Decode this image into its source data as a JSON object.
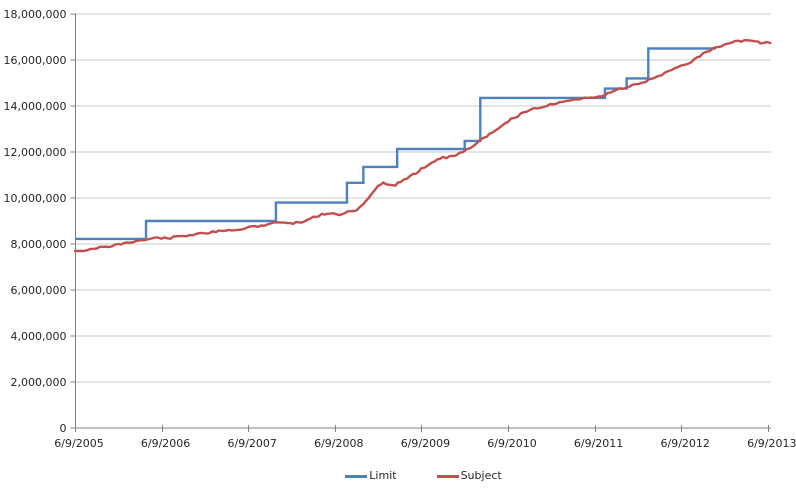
{
  "chart_data": {
    "type": "line",
    "title": "",
    "xlabel": "",
    "ylabel": "",
    "grid": true,
    "legend_position": "bottom",
    "x_axis": {
      "tick_labels": [
        "6/9/2005",
        "6/9/2006",
        "6/9/2007",
        "6/9/2008",
        "6/9/2009",
        "6/9/2010",
        "6/9/2011",
        "6/9/2012",
        "6/9/2013"
      ],
      "span_years": 8
    },
    "y_axis": {
      "min": 0,
      "max": 18000000,
      "step": 2000000,
      "tick_values": [
        0,
        2000000,
        4000000,
        6000000,
        8000000,
        10000000,
        12000000,
        14000000,
        16000000,
        18000000
      ]
    },
    "series": [
      {
        "name": "Limit",
        "color": "#4F81BD",
        "style": "step",
        "steps": [
          {
            "from_years": 0.0,
            "to_years": 0.82,
            "value": 8220000
          },
          {
            "from_years": 0.82,
            "to_years": 2.32,
            "value": 9000000
          },
          {
            "from_years": 2.32,
            "to_years": 3.14,
            "value": 9800000
          },
          {
            "from_years": 3.14,
            "to_years": 3.33,
            "value": 10660000
          },
          {
            "from_years": 3.33,
            "to_years": 3.72,
            "value": 11350000
          },
          {
            "from_years": 3.72,
            "to_years": 4.5,
            "value": 12130000
          },
          {
            "from_years": 4.5,
            "to_years": 4.68,
            "value": 12480000
          },
          {
            "from_years": 4.68,
            "to_years": 6.12,
            "value": 14350000
          },
          {
            "from_years": 6.12,
            "to_years": 6.37,
            "value": 14760000
          },
          {
            "from_years": 6.37,
            "to_years": 6.62,
            "value": 15200000
          },
          {
            "from_years": 6.62,
            "to_years": 7.4,
            "value": 16500000
          }
        ]
      },
      {
        "name": "Subject",
        "color": "#C0504D",
        "style": "line",
        "points": [
          [
            0.0,
            7700000
          ],
          [
            0.1,
            7740000
          ],
          [
            0.22,
            7800000
          ],
          [
            0.35,
            7880000
          ],
          [
            0.5,
            7970000
          ],
          [
            0.63,
            8050000
          ],
          [
            0.75,
            8140000
          ],
          [
            0.82,
            8210000
          ],
          [
            0.92,
            8250000
          ],
          [
            1.0,
            8270000
          ],
          [
            1.1,
            8260000
          ],
          [
            1.25,
            8350000
          ],
          [
            1.4,
            8430000
          ],
          [
            1.55,
            8500000
          ],
          [
            1.7,
            8560000
          ],
          [
            1.85,
            8630000
          ],
          [
            2.0,
            8700000
          ],
          [
            2.15,
            8800000
          ],
          [
            2.3,
            8910000
          ],
          [
            2.42,
            8950000
          ],
          [
            2.52,
            8900000
          ],
          [
            2.62,
            8950000
          ],
          [
            2.72,
            9100000
          ],
          [
            2.85,
            9300000
          ],
          [
            2.95,
            9350000
          ],
          [
            3.05,
            9300000
          ],
          [
            3.15,
            9380000
          ],
          [
            3.25,
            9450000
          ],
          [
            3.33,
            9700000
          ],
          [
            3.42,
            10200000
          ],
          [
            3.5,
            10550000
          ],
          [
            3.56,
            10660000
          ],
          [
            3.63,
            10600000
          ],
          [
            3.7,
            10580000
          ],
          [
            3.76,
            10720000
          ],
          [
            3.87,
            10920000
          ],
          [
            4.0,
            11250000
          ],
          [
            4.12,
            11550000
          ],
          [
            4.25,
            11750000
          ],
          [
            4.37,
            11800000
          ],
          [
            4.48,
            12000000
          ],
          [
            4.6,
            12280000
          ],
          [
            4.72,
            12600000
          ],
          [
            4.85,
            12950000
          ],
          [
            5.0,
            13350000
          ],
          [
            5.15,
            13650000
          ],
          [
            5.3,
            13880000
          ],
          [
            5.45,
            14020000
          ],
          [
            5.6,
            14150000
          ],
          [
            5.75,
            14250000
          ],
          [
            5.88,
            14330000
          ],
          [
            6.0,
            14400000
          ],
          [
            6.12,
            14480000
          ],
          [
            6.25,
            14700000
          ],
          [
            6.4,
            14850000
          ],
          [
            6.55,
            15000000
          ],
          [
            6.7,
            15250000
          ],
          [
            6.85,
            15500000
          ],
          [
            7.0,
            15720000
          ],
          [
            7.12,
            15950000
          ],
          [
            7.25,
            16250000
          ],
          [
            7.37,
            16500000
          ],
          [
            7.5,
            16680000
          ],
          [
            7.62,
            16800000
          ],
          [
            7.73,
            16850000
          ],
          [
            7.85,
            16800000
          ],
          [
            7.95,
            16740000
          ],
          [
            8.03,
            16740000
          ]
        ]
      }
    ]
  },
  "legend": {
    "items": [
      {
        "label": "Limit",
        "color": "#4F81BD"
      },
      {
        "label": "Subject",
        "color": "#C0504D"
      }
    ]
  },
  "colors": {
    "background": "#FFFFFF",
    "gridline": "#C8C8C8",
    "axis": "#808080",
    "text": "#262626"
  }
}
